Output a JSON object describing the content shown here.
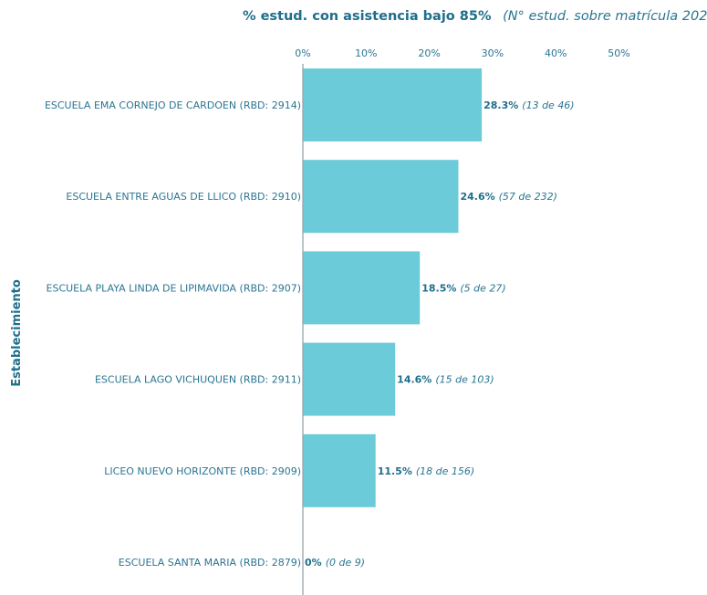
{
  "chart_data": {
    "type": "bar",
    "orientation": "horizontal",
    "title": "% estud. con asistencia bajo 85%",
    "subtitle": "(N° estud. sobre matrícula 202",
    "ylabel": "Establecimiento",
    "xlim": [
      0,
      50
    ],
    "xticks": [
      "0%",
      "10%",
      "20%",
      "30%",
      "40%",
      "50%"
    ],
    "colors": {
      "bar": "#6ccbd8",
      "text": "#1f6e8c",
      "axis": "#9aa5ab"
    },
    "categories": [
      "ESCUELA EMA CORNEJO DE CARDOEN (RBD: 2914)",
      "ESCUELA ENTRE AGUAS DE LLICO (RBD: 2910)",
      "ESCUELA PLAYA LINDA DE LIPIMAVIDA (RBD: 2907)",
      "ESCUELA LAGO VICHUQUEN (RBD: 2911)",
      "LICEO NUEVO HORIZONTE (RBD: 2909)",
      "ESCUELA SANTA MARIA (RBD: 2879)"
    ],
    "values": [
      28.3,
      24.6,
      18.5,
      14.6,
      11.5,
      0
    ],
    "value_labels": [
      "28.3%",
      "24.6%",
      "18.5%",
      "14.6%",
      "11.5%",
      "0%"
    ],
    "notes": [
      "(13 de 46)",
      "(57 de 232)",
      "(5 de 27)",
      "(15 de 103)",
      "(18 de 156)",
      "(0 de 9)"
    ]
  }
}
